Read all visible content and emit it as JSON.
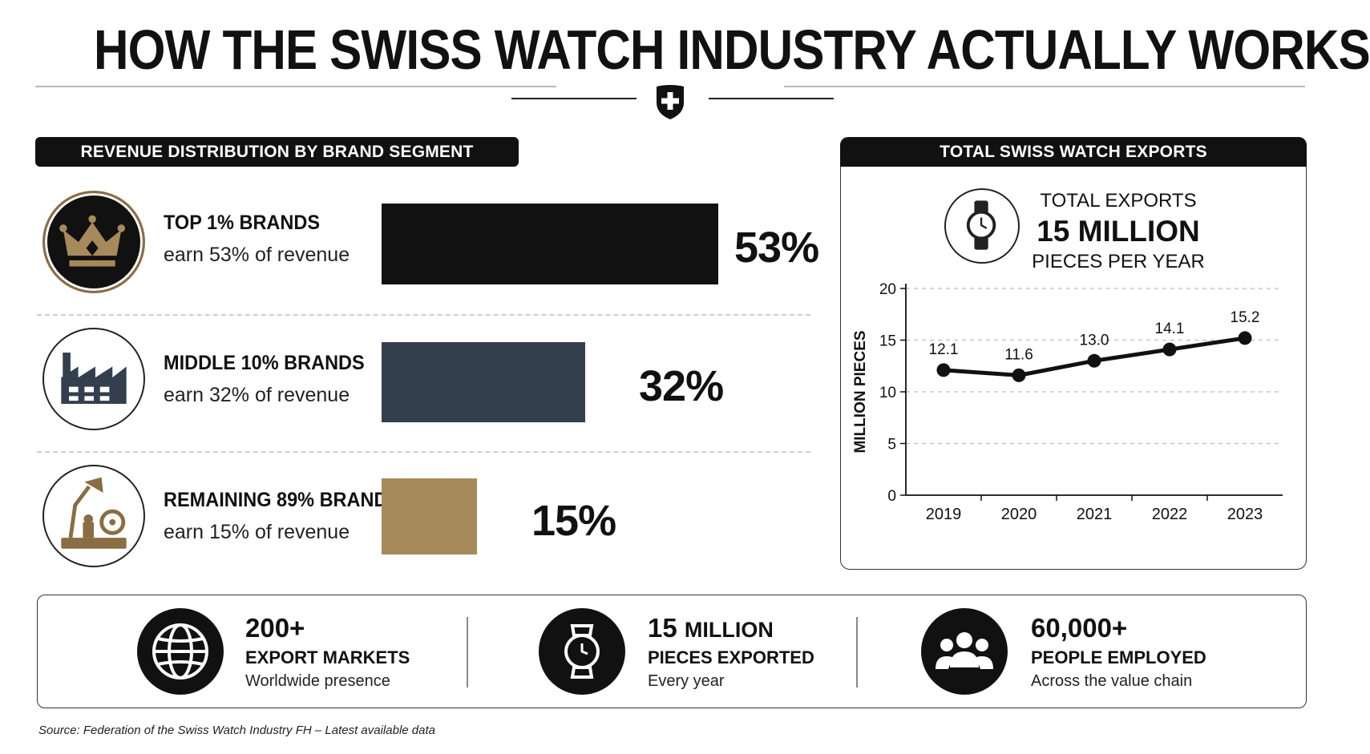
{
  "title": "HOW THE SWISS WATCH INDUSTRY ACTUALLY WORKS",
  "colors": {
    "black": "#111111",
    "navy": "#343f4e",
    "gold": "#a68a5b",
    "gold_ring": "#8a6d43"
  },
  "revenue": {
    "heading": "REVENUE DISTRIBUTION BY BRAND SEGMENT",
    "segments": [
      {
        "name": "TOP 1% BRANDS",
        "desc": "earn 53% of revenue",
        "value_label": "53%",
        "icon": "crown-icon"
      },
      {
        "name": "MIDDLE 10% BRANDS",
        "desc": "earn 32% of revenue",
        "value_label": "32%",
        "icon": "factory-icon"
      },
      {
        "name": "REMAINING 89% BRANDS",
        "desc": "earn 15% of revenue",
        "value_label": "15%",
        "icon": "workbench-icon"
      }
    ]
  },
  "exports": {
    "heading": "TOTAL SWISS WATCH EXPORTS",
    "label_top": "TOTAL EXPORTS",
    "label_big": "15 MILLION",
    "label_bottom": "PIECES PER YEAR",
    "icon": "wristwatch-icon"
  },
  "chart_data": [
    {
      "type": "bar",
      "orientation": "horizontal",
      "categories": [
        "TOP 1% BRANDS",
        "MIDDLE 10% BRANDS",
        "REMAINING 89% BRANDS"
      ],
      "values": [
        53,
        32,
        15
      ],
      "unit": "%",
      "colors": [
        "#111111",
        "#343f4e",
        "#a68a5b"
      ]
    },
    {
      "type": "line",
      "x": [
        "2019",
        "2020",
        "2021",
        "2022",
        "2023"
      ],
      "y": [
        12.1,
        11.6,
        13.0,
        14.1,
        15.2
      ],
      "data_labels": [
        "12.1",
        "11.6",
        "13.0",
        "14.1",
        "15.2"
      ],
      "ylabel": "MILLION PIECES",
      "ylim": [
        0,
        20
      ],
      "yticks": [
        "0",
        "5",
        "10",
        "15",
        "20"
      ],
      "grid": true
    }
  ],
  "stats": [
    {
      "big": "200+",
      "big_small": "",
      "label": "EXPORT MARKETS",
      "sub": "Worldwide presence",
      "icon": "globe-icon"
    },
    {
      "big": "15",
      "big_small": "MILLION",
      "label": "PIECES EXPORTED",
      "sub": "Every year",
      "icon": "wristwatch-icon"
    },
    {
      "big": "60,000+",
      "big_small": "",
      "label": "PEOPLE EMPLOYED",
      "sub": "Across the value chain",
      "icon": "people-icon"
    }
  ],
  "source": "Source: Federation of the Swiss Watch Industry FH – Latest available data"
}
